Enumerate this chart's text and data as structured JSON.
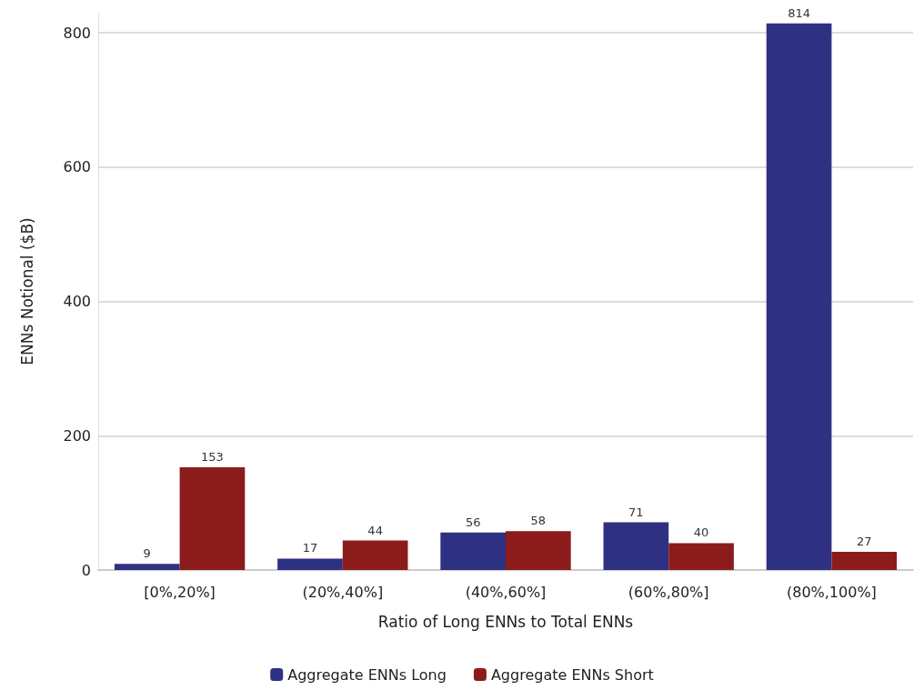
{
  "chart_data": {
    "type": "bar",
    "xlabel": "Ratio of Long ENNs to Total ENNs",
    "ylabel": "ENNs Notional ($B)",
    "categories": [
      "[0%,20%]",
      "(20%,40%]",
      "(40%,60%]",
      "(60%,80%]",
      "(80%,100%]"
    ],
    "series": [
      {
        "name": "Aggregate ENNs Long",
        "color": "#2e3182",
        "values": [
          9,
          17,
          56,
          71,
          814
        ]
      },
      {
        "name": "Aggregate ENNs Short",
        "color": "#8c1c1c",
        "values": [
          153,
          44,
          58,
          40,
          27
        ]
      }
    ],
    "ylim": [
      0,
      830
    ],
    "yticks": [
      0,
      200,
      400,
      600,
      800
    ],
    "grid": "y",
    "legend": "bottom",
    "data_labels": true
  }
}
